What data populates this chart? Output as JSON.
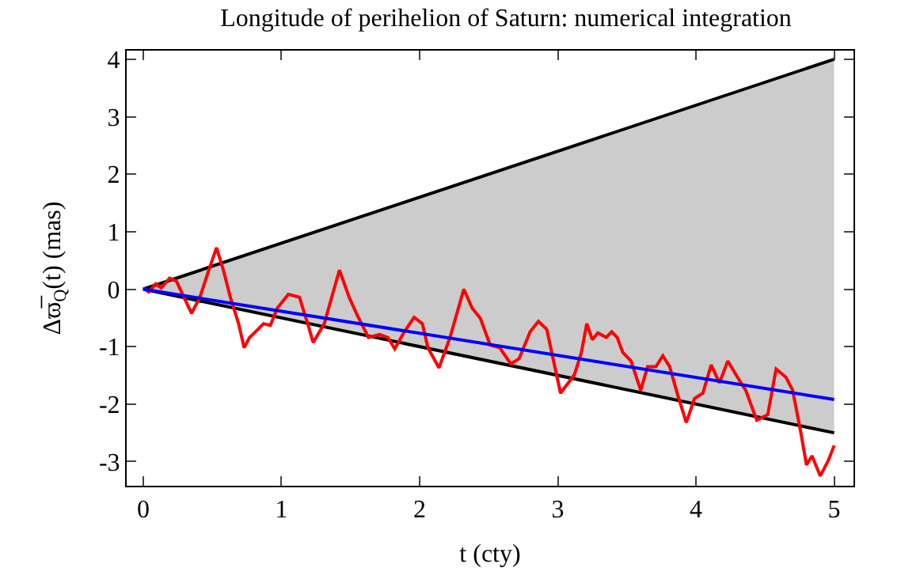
{
  "chart_data": {
    "type": "line",
    "title": "Longitude of perihelion of Saturn: numerical integration",
    "xlabel": "t (cty)",
    "ylabel": "Δϖ̅$_{Q}$(t) (mas)",
    "xlim": [
      -0.12,
      5.14
    ],
    "ylim": [
      -3.42,
      4.15
    ],
    "xticks": [
      0,
      1,
      2,
      3,
      4,
      5
    ],
    "yticks": [
      -3,
      -2,
      -1,
      0,
      1,
      2,
      3,
      4
    ],
    "grid": false,
    "marker": "none",
    "line_style": "solid",
    "series": [
      {
        "color": "#0000ff",
        "x": [
          0,
          5
        ],
        "values": [
          0,
          -1.92
        ],
        "lower": [
          0,
          -2.5
        ],
        "upper": [
          0,
          4
        ]
      },
      {
        "color": "#000000",
        "x": [
          0,
          5
        ],
        "values": [
          0,
          4
        ]
      },
      {
        "color": "#000000",
        "x": [
          0,
          5
        ],
        "values": [
          0,
          -2.5
        ]
      },
      {
        "color": "#ff0000",
        "x": [
          0,
          0.04,
          0.09,
          0.13,
          0.19,
          0.24,
          0.3,
          0.35,
          0.41,
          0.48,
          0.53,
          0.58,
          0.63,
          0.69,
          0.73,
          0.77,
          0.83,
          0.87,
          0.92,
          0.97,
          1.05,
          1.13,
          1.19,
          1.23,
          1.31,
          1.37,
          1.42,
          1.49,
          1.55,
          1.63,
          1.71,
          1.77,
          1.82,
          1.89,
          1.96,
          2.02,
          2.06,
          2.14,
          2.22,
          2.32,
          2.38,
          2.44,
          2.51,
          2.58,
          2.66,
          2.72,
          2.8,
          2.86,
          2.92,
          3.02,
          3.12,
          3.17,
          3.21,
          3.25,
          3.29,
          3.35,
          3.39,
          3.43,
          3.47,
          3.53,
          3.6,
          3.65,
          3.71,
          3.76,
          3.81,
          3.87,
          3.93,
          3.99,
          4.05,
          4.11,
          4.17,
          4.23,
          4.3,
          4.36,
          4.44,
          4.52,
          4.58,
          4.65,
          4.7,
          4.76,
          4.8,
          4.84,
          4.9,
          4.96,
          5.0
        ],
        "values": [
          0.02,
          -0.05,
          0.09,
          0.02,
          0.19,
          0.14,
          -0.17,
          -0.42,
          -0.14,
          0.37,
          0.72,
          0.33,
          -0.14,
          -0.6,
          -1.02,
          -0.84,
          -0.7,
          -0.6,
          -0.63,
          -0.33,
          -0.09,
          -0.14,
          -0.6,
          -0.93,
          -0.6,
          -0.09,
          0.33,
          -0.14,
          -0.46,
          -0.84,
          -0.79,
          -0.84,
          -1.04,
          -0.74,
          -0.49,
          -0.6,
          -1.02,
          -1.37,
          -0.84,
          0.0,
          -0.33,
          -0.51,
          -0.97,
          -1.02,
          -1.3,
          -1.21,
          -0.74,
          -0.56,
          -0.7,
          -1.81,
          -1.49,
          -1.11,
          -0.6,
          -0.88,
          -0.76,
          -0.84,
          -0.74,
          -0.84,
          -1.1,
          -1.25,
          -1.76,
          -1.35,
          -1.35,
          -1.16,
          -1.35,
          -1.86,
          -2.32,
          -1.9,
          -1.81,
          -1.32,
          -1.63,
          -1.25,
          -1.53,
          -1.76,
          -2.28,
          -2.18,
          -1.39,
          -1.53,
          -1.76,
          -2.51,
          -3.06,
          -2.9,
          -3.25,
          -2.97,
          -2.72
        ]
      }
    ]
  }
}
